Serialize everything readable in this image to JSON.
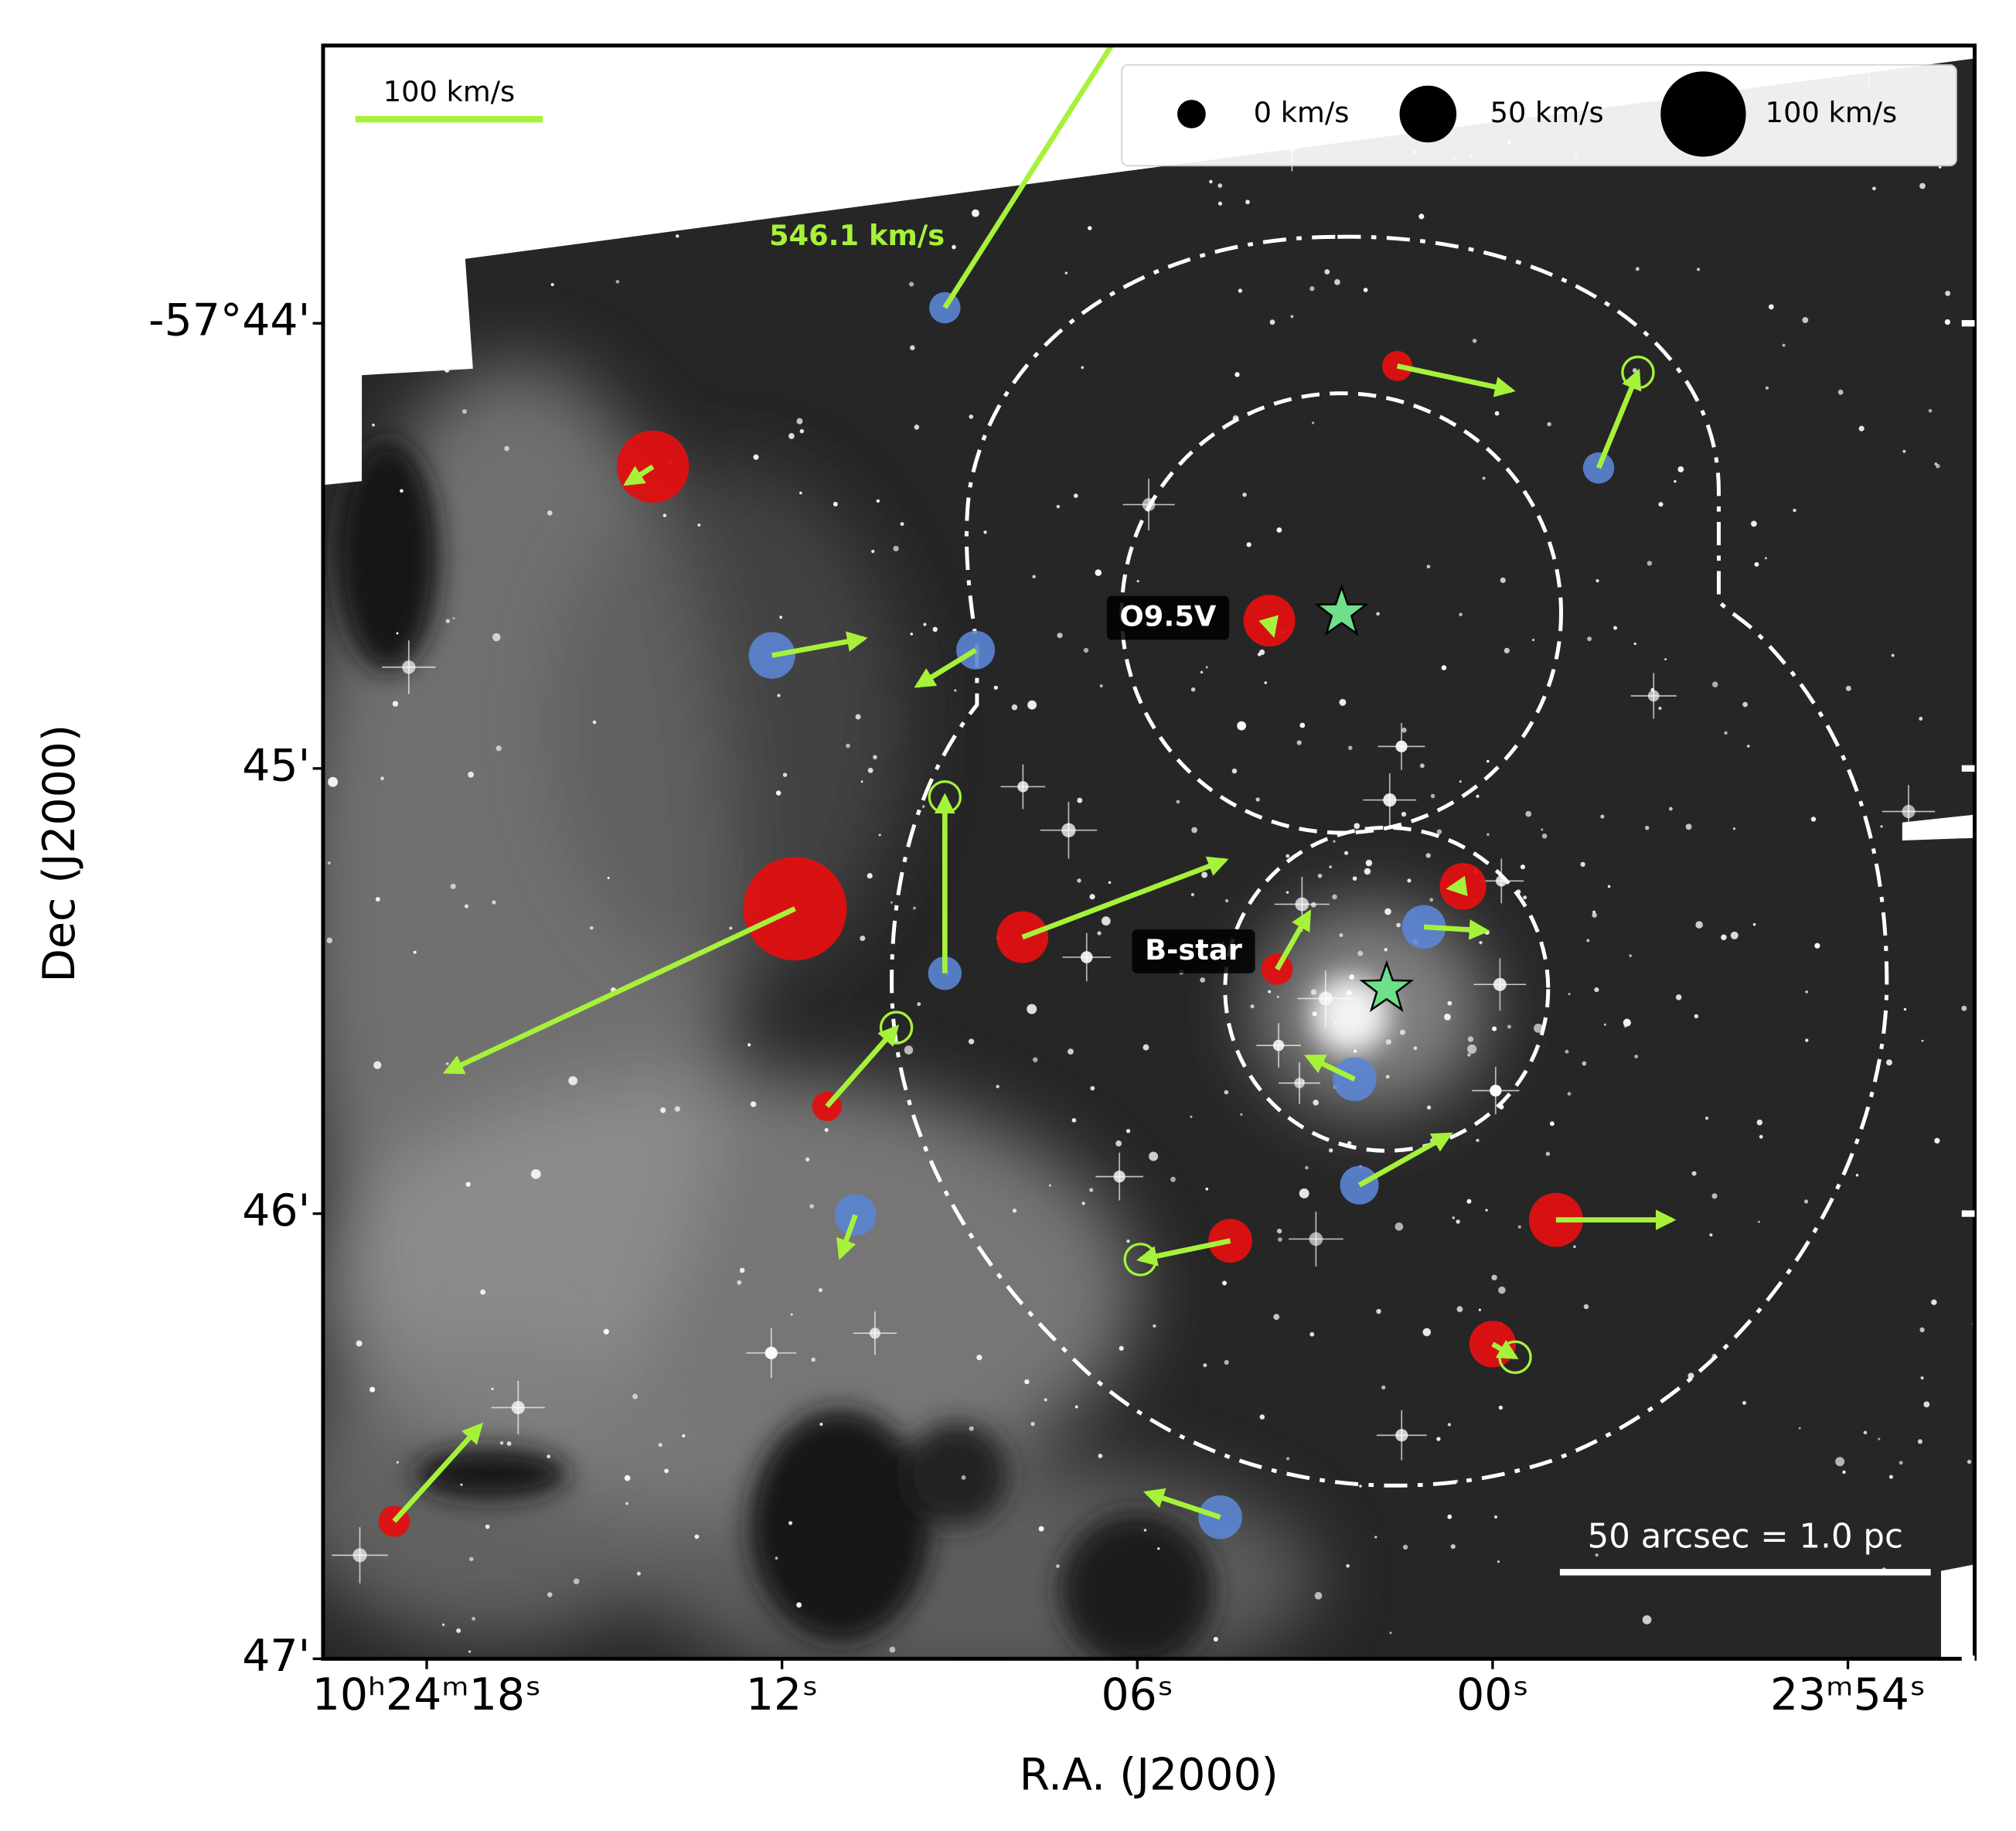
{
  "chart_data": {
    "type": "scatter",
    "x_label": "R.A. (J2000)",
    "y_label": "Dec (J2000)",
    "xlim": [
      19.75,
      -8.14
    ],
    "ylim": [
      47,
      43.376
    ],
    "xticks": [
      {
        "value": 18,
        "label": "10ʰ24ᵐ18ˢ"
      },
      {
        "value": 12,
        "label": "12ˢ"
      },
      {
        "value": 6,
        "label": "06ˢ"
      },
      {
        "value": 0,
        "label": "00ˢ"
      },
      {
        "value": -6,
        "label": "23ᵐ54ˢ"
      }
    ],
    "yticks": [
      {
        "value": 44,
        "label": "-57°44'"
      },
      {
        "value": 45,
        "label": "45'"
      },
      {
        "value": 46,
        "label": "46'"
      },
      {
        "value": 47,
        "label": "47'"
      }
    ],
    "redshift_color": "#e01010",
    "blueshift_color": "#5b86d4",
    "arrow_color": "#a6f23a",
    "stars": [
      {
        "ra": 9.25,
        "dec": 43.965,
        "rv": -5,
        "pm_x": 293,
        "pm_y": 460.8,
        "speed_label": "546.1 km/s"
      },
      {
        "ra": 1.61,
        "dec": 44.096,
        "rv": 3,
        "pm_x": 61,
        "pm_y": -13
      },
      {
        "ra": -1.79,
        "dec": 44.325,
        "rv": -5,
        "pm_x": 21,
        "pm_y": 51,
        "ring": true
      },
      {
        "ra": 14.18,
        "dec": 44.322,
        "rv": 77,
        "pm_x": -14,
        "pm_y": -9
      },
      {
        "ra": 3.77,
        "dec": 44.668,
        "rv": 41,
        "pm_x": 2,
        "pm_y": -7
      },
      {
        "ra": 12.17,
        "dec": 44.746,
        "rv": -32,
        "pm_x": 49,
        "pm_y": 9
      },
      {
        "ra": 8.73,
        "dec": 44.734,
        "rv": -18,
        "pm_x": -31,
        "pm_y": -19
      },
      {
        "ra": 9.25,
        "dec": 45.46,
        "rv": -9,
        "pm_x": 0,
        "pm_y": 94,
        "ring": true
      },
      {
        "ra": 11.78,
        "dec": 45.315,
        "rv": 132,
        "pm_x": -186,
        "pm_y": -87
      },
      {
        "ra": 7.94,
        "dec": 45.379,
        "rv": 41,
        "pm_x": 108,
        "pm_y": 41
      },
      {
        "ra": 0.5,
        "dec": 45.265,
        "rv": 32,
        "pm_x": -7,
        "pm_y": -1
      },
      {
        "ra": 1.16,
        "dec": 45.356,
        "rv": -27,
        "pm_x": 33,
        "pm_y": -2
      },
      {
        "ra": 3.64,
        "dec": 45.451,
        "rv": 5,
        "pm_x": 17,
        "pm_y": 30
      },
      {
        "ra": 2.33,
        "dec": 45.698,
        "rv": -27,
        "pm_x": -25,
        "pm_y": 12
      },
      {
        "ra": 11.24,
        "dec": 45.759,
        "rv": 2,
        "pm_x": 37,
        "pm_y": 42,
        "ring": true
      },
      {
        "ra": 2.25,
        "dec": 45.936,
        "rv": -18,
        "pm_x": 48,
        "pm_y": 27
      },
      {
        "ra": 10.76,
        "dec": 46.003,
        "rv": -23,
        "pm_x": -8,
        "pm_y": -22
      },
      {
        "ra": 4.43,
        "dec": 46.061,
        "rv": 27,
        "pm_x": -48,
        "pm_y": -10,
        "ring": true
      },
      {
        "ra": -1.07,
        "dec": 46.014,
        "rv": 45,
        "pm_x": 62,
        "pm_y": 0
      },
      {
        "ra": 0.0,
        "dec": 46.293,
        "rv": 32,
        "pm_x": 12,
        "pm_y": -7,
        "ring": true
      },
      {
        "ra": 18.55,
        "dec": 46.691,
        "rv": 5,
        "pm_x": 46,
        "pm_y": 51
      },
      {
        "ra": 4.6,
        "dec": 46.682,
        "rv": -27,
        "pm_x": -39,
        "pm_y": 13
      }
    ],
    "named_stars": [
      {
        "name": "O9.5V",
        "ra": 2.55,
        "dec": 44.65
      },
      {
        "name": "B-star",
        "ra": 1.79,
        "dec": 45.495
      }
    ],
    "size_legend": [
      {
        "value": 0,
        "label": "0 km/s"
      },
      {
        "value": 50,
        "label": "50 km/s"
      },
      {
        "value": 100,
        "label": "100 km/s"
      }
    ],
    "velocity_scale": {
      "value": 100,
      "label": "100 km/s"
    },
    "physical_scale": {
      "value": 50,
      "label": "50 arcsec = 1.0 pc"
    }
  }
}
